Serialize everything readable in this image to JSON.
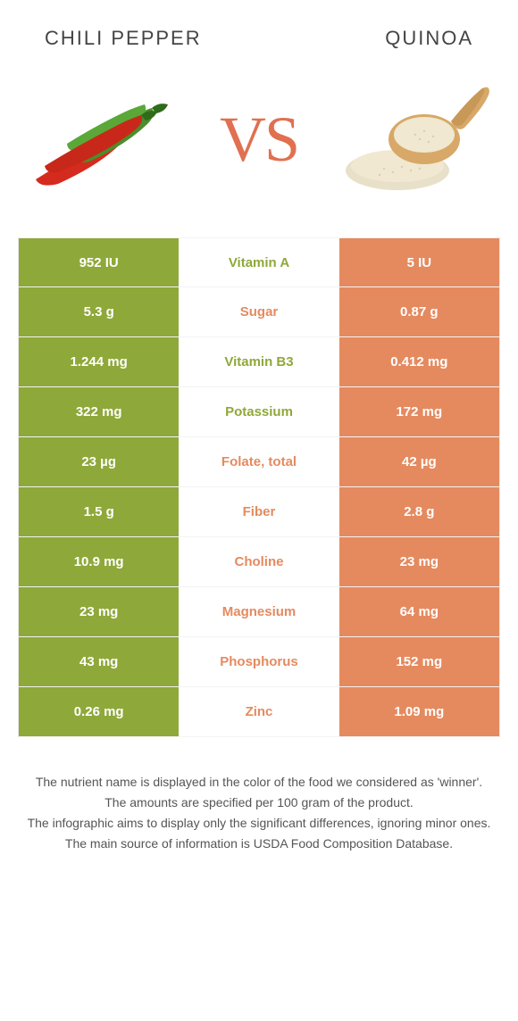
{
  "header": {
    "left_title": "Chili pepper",
    "right_title": "Quinoa"
  },
  "colors": {
    "left": "#8fa83a",
    "right": "#e58a5f",
    "middle_left": "#8fa83a",
    "middle_right": "#e58a5f",
    "vs": "#e07050",
    "chili_red": "#d52b1e",
    "chili_green": "#4a8f2a",
    "chili_dark_green": "#2e6b1a",
    "quinoa_scoop": "#d8a868",
    "quinoa_grain": "#e8e0c8"
  },
  "vs_label": "VS",
  "rows": [
    {
      "left": "952 IU",
      "middle": "Vitamin A",
      "right": "5 IU",
      "winner": "left"
    },
    {
      "left": "5.3 g",
      "middle": "Sugar",
      "right": "0.87 g",
      "winner": "right"
    },
    {
      "left": "1.244 mg",
      "middle": "Vitamin B3",
      "right": "0.412 mg",
      "winner": "left"
    },
    {
      "left": "322 mg",
      "middle": "Potassium",
      "right": "172 mg",
      "winner": "left"
    },
    {
      "left": "23 µg",
      "middle": "Folate, total",
      "right": "42 µg",
      "winner": "right"
    },
    {
      "left": "1.5 g",
      "middle": "Fiber",
      "right": "2.8 g",
      "winner": "right"
    },
    {
      "left": "10.9 mg",
      "middle": "Choline",
      "right": "23 mg",
      "winner": "right"
    },
    {
      "left": "23 mg",
      "middle": "Magnesium",
      "right": "64 mg",
      "winner": "right"
    },
    {
      "left": "43 mg",
      "middle": "Phosphorus",
      "right": "152 mg",
      "winner": "right"
    },
    {
      "left": "0.26 mg",
      "middle": "Zinc",
      "right": "1.09 mg",
      "winner": "right"
    }
  ],
  "footer": [
    "The nutrient name is displayed in the color of the food we considered as 'winner'.",
    "The amounts are specified per 100 gram of the product.",
    "The infographic aims to display only the significant differences, ignoring minor ones.",
    "The main source of information is USDA Food Composition Database."
  ]
}
